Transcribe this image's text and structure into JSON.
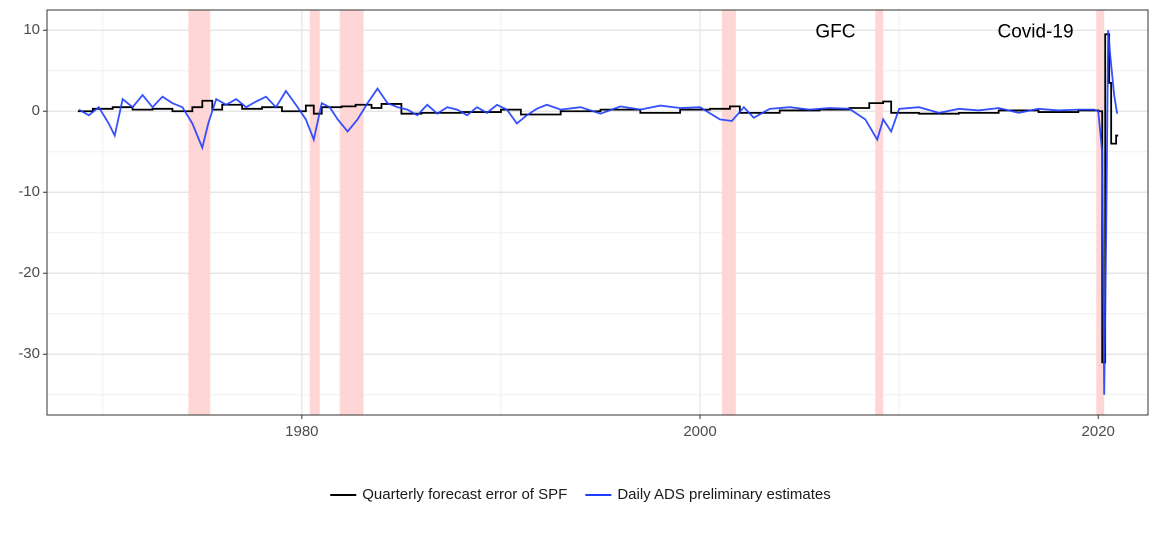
{
  "chart_data": {
    "type": "line",
    "xlim": [
      1967.2,
      2022.5
    ],
    "ylim": [
      -37.5,
      12.5
    ],
    "xticks": [
      1980,
      2000,
      2020
    ],
    "yticks": [
      -30,
      -20,
      -10,
      0,
      10
    ],
    "x_minor_grid": [
      1970,
      1990,
      2010
    ],
    "y_minor_grid": [
      -35,
      -25,
      -15,
      -5,
      5
    ],
    "grid": true,
    "legend_position": "bottom",
    "shaded_periods": [
      [
        1974.3,
        1975.4
      ],
      [
        1980.4,
        1980.9
      ],
      [
        1981.9,
        1983.1
      ],
      [
        2001.1,
        2001.8
      ],
      [
        2008.8,
        2009.2
      ],
      [
        2019.9,
        2020.3
      ]
    ],
    "shade_color": "#ffd6d6",
    "annotations": [
      {
        "text": "GFC",
        "x": 2006.8,
        "y": 10
      },
      {
        "text": "Covid-19",
        "x": 2016.85,
        "y": 10
      }
    ],
    "series": [
      {
        "name": "Quarterly forecast error of SPF",
        "color": "#000000",
        "step": true,
        "x": [
          1968.75,
          1969.5,
          1970.5,
          1971.5,
          1972.5,
          1973.5,
          1974.5,
          1975,
          1975.5,
          1976,
          1977,
          1978,
          1979,
          1980.2,
          1980.6,
          1981,
          1982,
          1982.7,
          1983.5,
          1984,
          1985,
          1986,
          1988,
          1990,
          1991,
          1993,
          1995,
          1997,
          1999,
          2000.5,
          2001.5,
          2002,
          2004,
          2006,
          2007.5,
          2008.5,
          2009.2,
          2009.6,
          2011,
          2013,
          2015,
          2017,
          2019,
          2020,
          2020.2,
          2020.35,
          2020.55,
          2020.65,
          2020.9,
          2021.0
        ],
        "values": [
          0,
          0.3,
          0.5,
          0.2,
          0.3,
          0,
          0.5,
          1.3,
          0.2,
          0.8,
          0.3,
          0.5,
          0,
          0.7,
          -0.3,
          0.5,
          0.6,
          0.8,
          0.4,
          0.9,
          -0.3,
          -0.2,
          -0.1,
          0.2,
          -0.4,
          0,
          0.2,
          -0.2,
          0.2,
          0.3,
          0.6,
          -0.2,
          0.1,
          0.2,
          0.4,
          1.0,
          1.2,
          -0.2,
          -0.3,
          -0.2,
          0.1,
          -0.1,
          0.1,
          0,
          -31,
          9.5,
          3.5,
          -4,
          -3,
          -3
        ]
      },
      {
        "name": "Daily ADS preliminary estimates",
        "color": "#1f3dff",
        "x": [
          1968.8,
          1969.3,
          1969.8,
          1970.3,
          1970.6,
          1971,
          1971.5,
          1972,
          1972.5,
          1973,
          1973.5,
          1974,
          1974.5,
          1975,
          1975.3,
          1975.7,
          1976.2,
          1976.7,
          1977.2,
          1977.7,
          1978.2,
          1978.7,
          1979.2,
          1979.7,
          1980.2,
          1980.6,
          1981,
          1981.4,
          1981.8,
          1982.3,
          1982.8,
          1983.3,
          1983.8,
          1984.3,
          1984.8,
          1985.3,
          1985.8,
          1986.3,
          1986.8,
          1987.3,
          1987.8,
          1988.3,
          1988.8,
          1989.3,
          1989.8,
          1990.3,
          1990.8,
          1991.3,
          1991.8,
          1992.3,
          1993,
          1994,
          1995,
          1996,
          1997,
          1998,
          1999,
          2000,
          2001,
          2001.6,
          2002.2,
          2002.7,
          2003.5,
          2004.5,
          2005.5,
          2006.5,
          2007.5,
          2008.3,
          2008.9,
          2009.2,
          2009.6,
          2010,
          2011,
          2012,
          2013,
          2014,
          2015,
          2016,
          2017,
          2018,
          2019,
          2019.8,
          2020.0,
          2020.2,
          2020.3,
          2020.4,
          2020.5,
          2020.6,
          2020.8,
          2020.95
        ],
        "values": [
          0.2,
          -0.5,
          0.5,
          -1.5,
          -3,
          1.5,
          0.5,
          2,
          0.5,
          1.8,
          1,
          0.5,
          -1.5,
          -4.5,
          -1.5,
          1.5,
          0.8,
          1.5,
          0.5,
          1.2,
          1.8,
          0.5,
          2.5,
          0.8,
          -1,
          -3.5,
          1,
          0.5,
          -1,
          -2.5,
          -1,
          1,
          2.8,
          1,
          0.5,
          0.2,
          -0.5,
          0.8,
          -0.3,
          0.5,
          0.2,
          -0.5,
          0.5,
          -0.2,
          0.8,
          0.2,
          -1.5,
          -0.5,
          0.3,
          0.8,
          0.2,
          0.5,
          -0.3,
          0.6,
          0.2,
          0.7,
          0.4,
          0.5,
          -1,
          -1.2,
          0.5,
          -0.8,
          0.3,
          0.5,
          0.2,
          0.4,
          0.3,
          -1,
          -3.5,
          -1,
          -2.5,
          0.3,
          0.5,
          -0.2,
          0.3,
          0.1,
          0.4,
          -0.2,
          0.3,
          0.1,
          0.2,
          0.2,
          0,
          -5,
          -35,
          -15,
          10,
          7,
          2,
          -0.3
        ]
      }
    ]
  }
}
